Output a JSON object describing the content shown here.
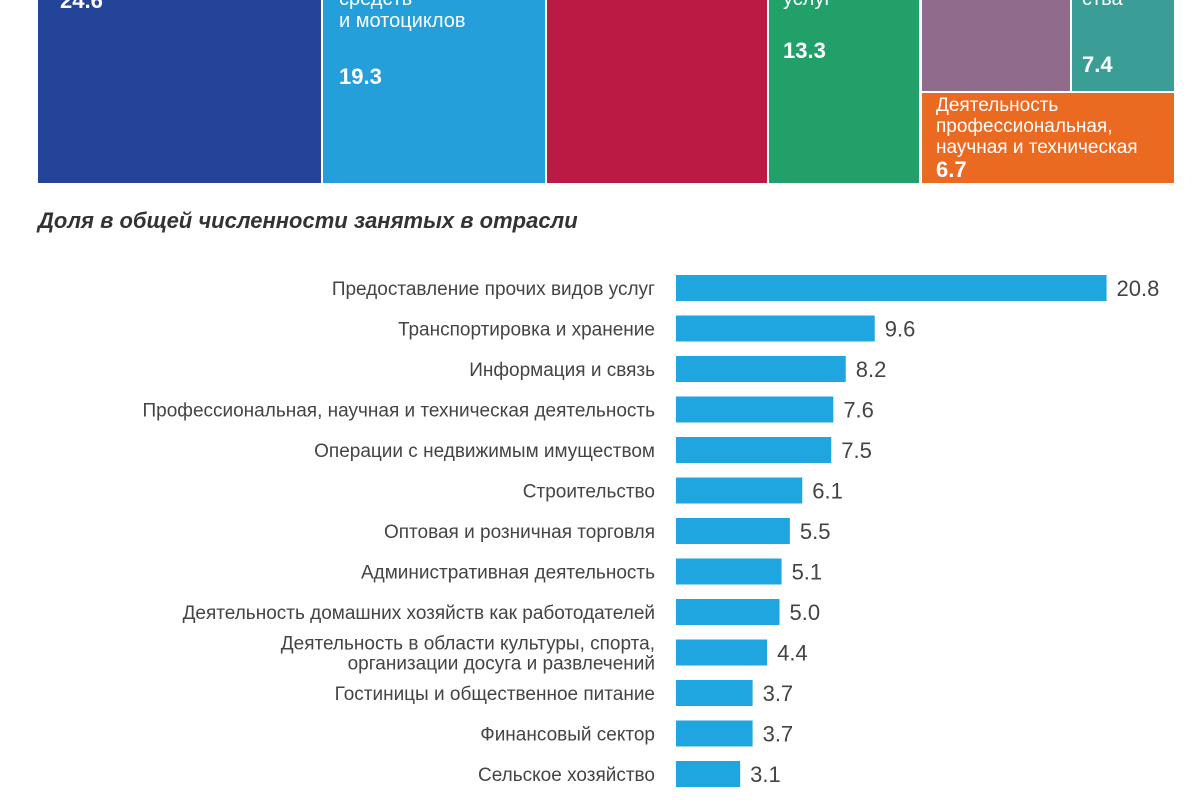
{
  "treemap": {
    "cells": [
      {
        "label": "",
        "value": "24.6",
        "color": "#24449a"
      },
      {
        "label": "средств\nи мотоциклов",
        "value": "19.3",
        "color": "#249fd9"
      },
      {
        "label": "",
        "value": "",
        "color": "#b91b45"
      },
      {
        "label": "услуг",
        "value": "13.3",
        "color": "#21a06a"
      },
      {
        "label": "",
        "value": "",
        "color": "#906b8c"
      },
      {
        "label": "ства",
        "value": "7.4",
        "color": "#3a9e97"
      },
      {
        "label": "Деятельность\nпрофессиональная,\nнаучная и техническая",
        "value": "6.7",
        "color": "#ea6a21"
      }
    ]
  },
  "section_title": "Доля в общей численности занятых в отрасли",
  "chart_data": {
    "type": "bar",
    "orientation": "horizontal",
    "title": "Доля в общей численности занятых в отрасли",
    "categories": [
      "Предоставление прочих видов услуг",
      "Транспортировка и хранение",
      "Информация и связь",
      "Профессиональная, научная и техническая деятельность",
      "Операции с недвижимым имуществом",
      "Строительство",
      "Оптовая и розничная торговля",
      "Административная деятельность",
      "Деятельность домашних хозяйств как работодателей",
      "Деятельность в области культуры, спорта,\nорганизации досуга и развлечений",
      "Гостиницы и общественное питание",
      "Финансовый сектор",
      "Сельское хозяйство"
    ],
    "values": [
      20.8,
      9.6,
      8.2,
      7.6,
      7.5,
      6.1,
      5.5,
      5.1,
      5.0,
      4.4,
      3.7,
      3.7,
      3.1
    ],
    "value_labels": [
      "20.8",
      "9.6",
      "8.2",
      "7.6",
      "7.5",
      "6.1",
      "5.5",
      "5.1",
      "5.0",
      "4.4",
      "3.7",
      "3.7",
      "3.1"
    ],
    "bar_color": "#1fa6e0",
    "grid": false
  }
}
